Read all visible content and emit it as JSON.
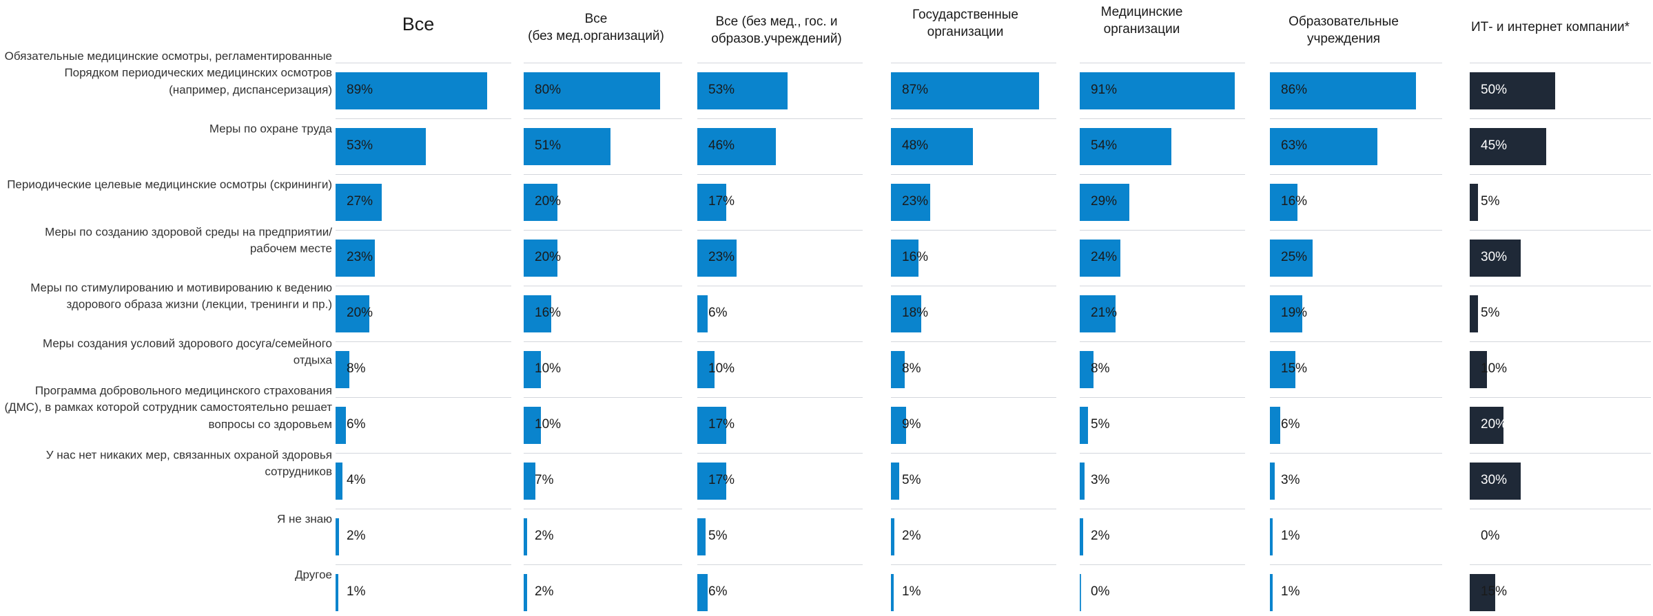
{
  "chart_data": {
    "type": "bar",
    "orientation": "horizontal",
    "categories": [
      "Обязательные медицинские осмотры, регламентированные Порядком периодических медицинских осмотров (например, диспансеризация)",
      "Меры по охране труда",
      "Периодические целевые медицинские осмотры (скрининги)",
      "Меры по созданию здоровой среды на предприятии/рабочем месте",
      "Меры по стимулированию и мотивированию к ведению здорового образа жизни (лекции, тренинги и пр.)",
      "Меры создания условий здорового досуга/семейного отдыха",
      "Программа добровольного медицинского страхования (ДМС), в рамках которой сотрудник самостоятельно решает вопросы со здоровьем",
      "У нас нет никаких мер, связанных охраной здоровья сотрудников",
      "Я не знаю",
      "Другое"
    ],
    "series": [
      {
        "name": "Все",
        "values": [
          89,
          53,
          27,
          23,
          20,
          8,
          6,
          4,
          2,
          1
        ]
      },
      {
        "name": "Все\n(без мед.организаций)",
        "values": [
          80,
          51,
          20,
          20,
          16,
          10,
          10,
          7,
          2,
          2
        ]
      },
      {
        "name": "Все (без мед., гос. и\nобразов.учреждений)",
        "values": [
          53,
          46,
          17,
          23,
          6,
          10,
          17,
          17,
          5,
          6
        ]
      },
      {
        "name": "Государственные\nорганизации",
        "values": [
          87,
          48,
          23,
          16,
          18,
          8,
          9,
          5,
          2,
          1
        ]
      },
      {
        "name": "Медицинские\nорганизации",
        "values": [
          91,
          54,
          29,
          24,
          21,
          8,
          5,
          3,
          2,
          0
        ]
      },
      {
        "name": "Образовательные\nучреждения",
        "values": [
          86,
          63,
          16,
          25,
          19,
          15,
          6,
          3,
          1,
          1
        ]
      },
      {
        "name": "ИТ- и интернет компании*",
        "values": [
          50,
          45,
          5,
          30,
          5,
          10,
          20,
          30,
          0,
          15
        ]
      }
    ],
    "value_suffix": "%",
    "xlim": [
      0,
      100
    ],
    "colors": {
      "default": "#0a84cd",
      "highlight": "#1f2937"
    },
    "highlight_series": 6,
    "grid": false,
    "legend": "none"
  }
}
